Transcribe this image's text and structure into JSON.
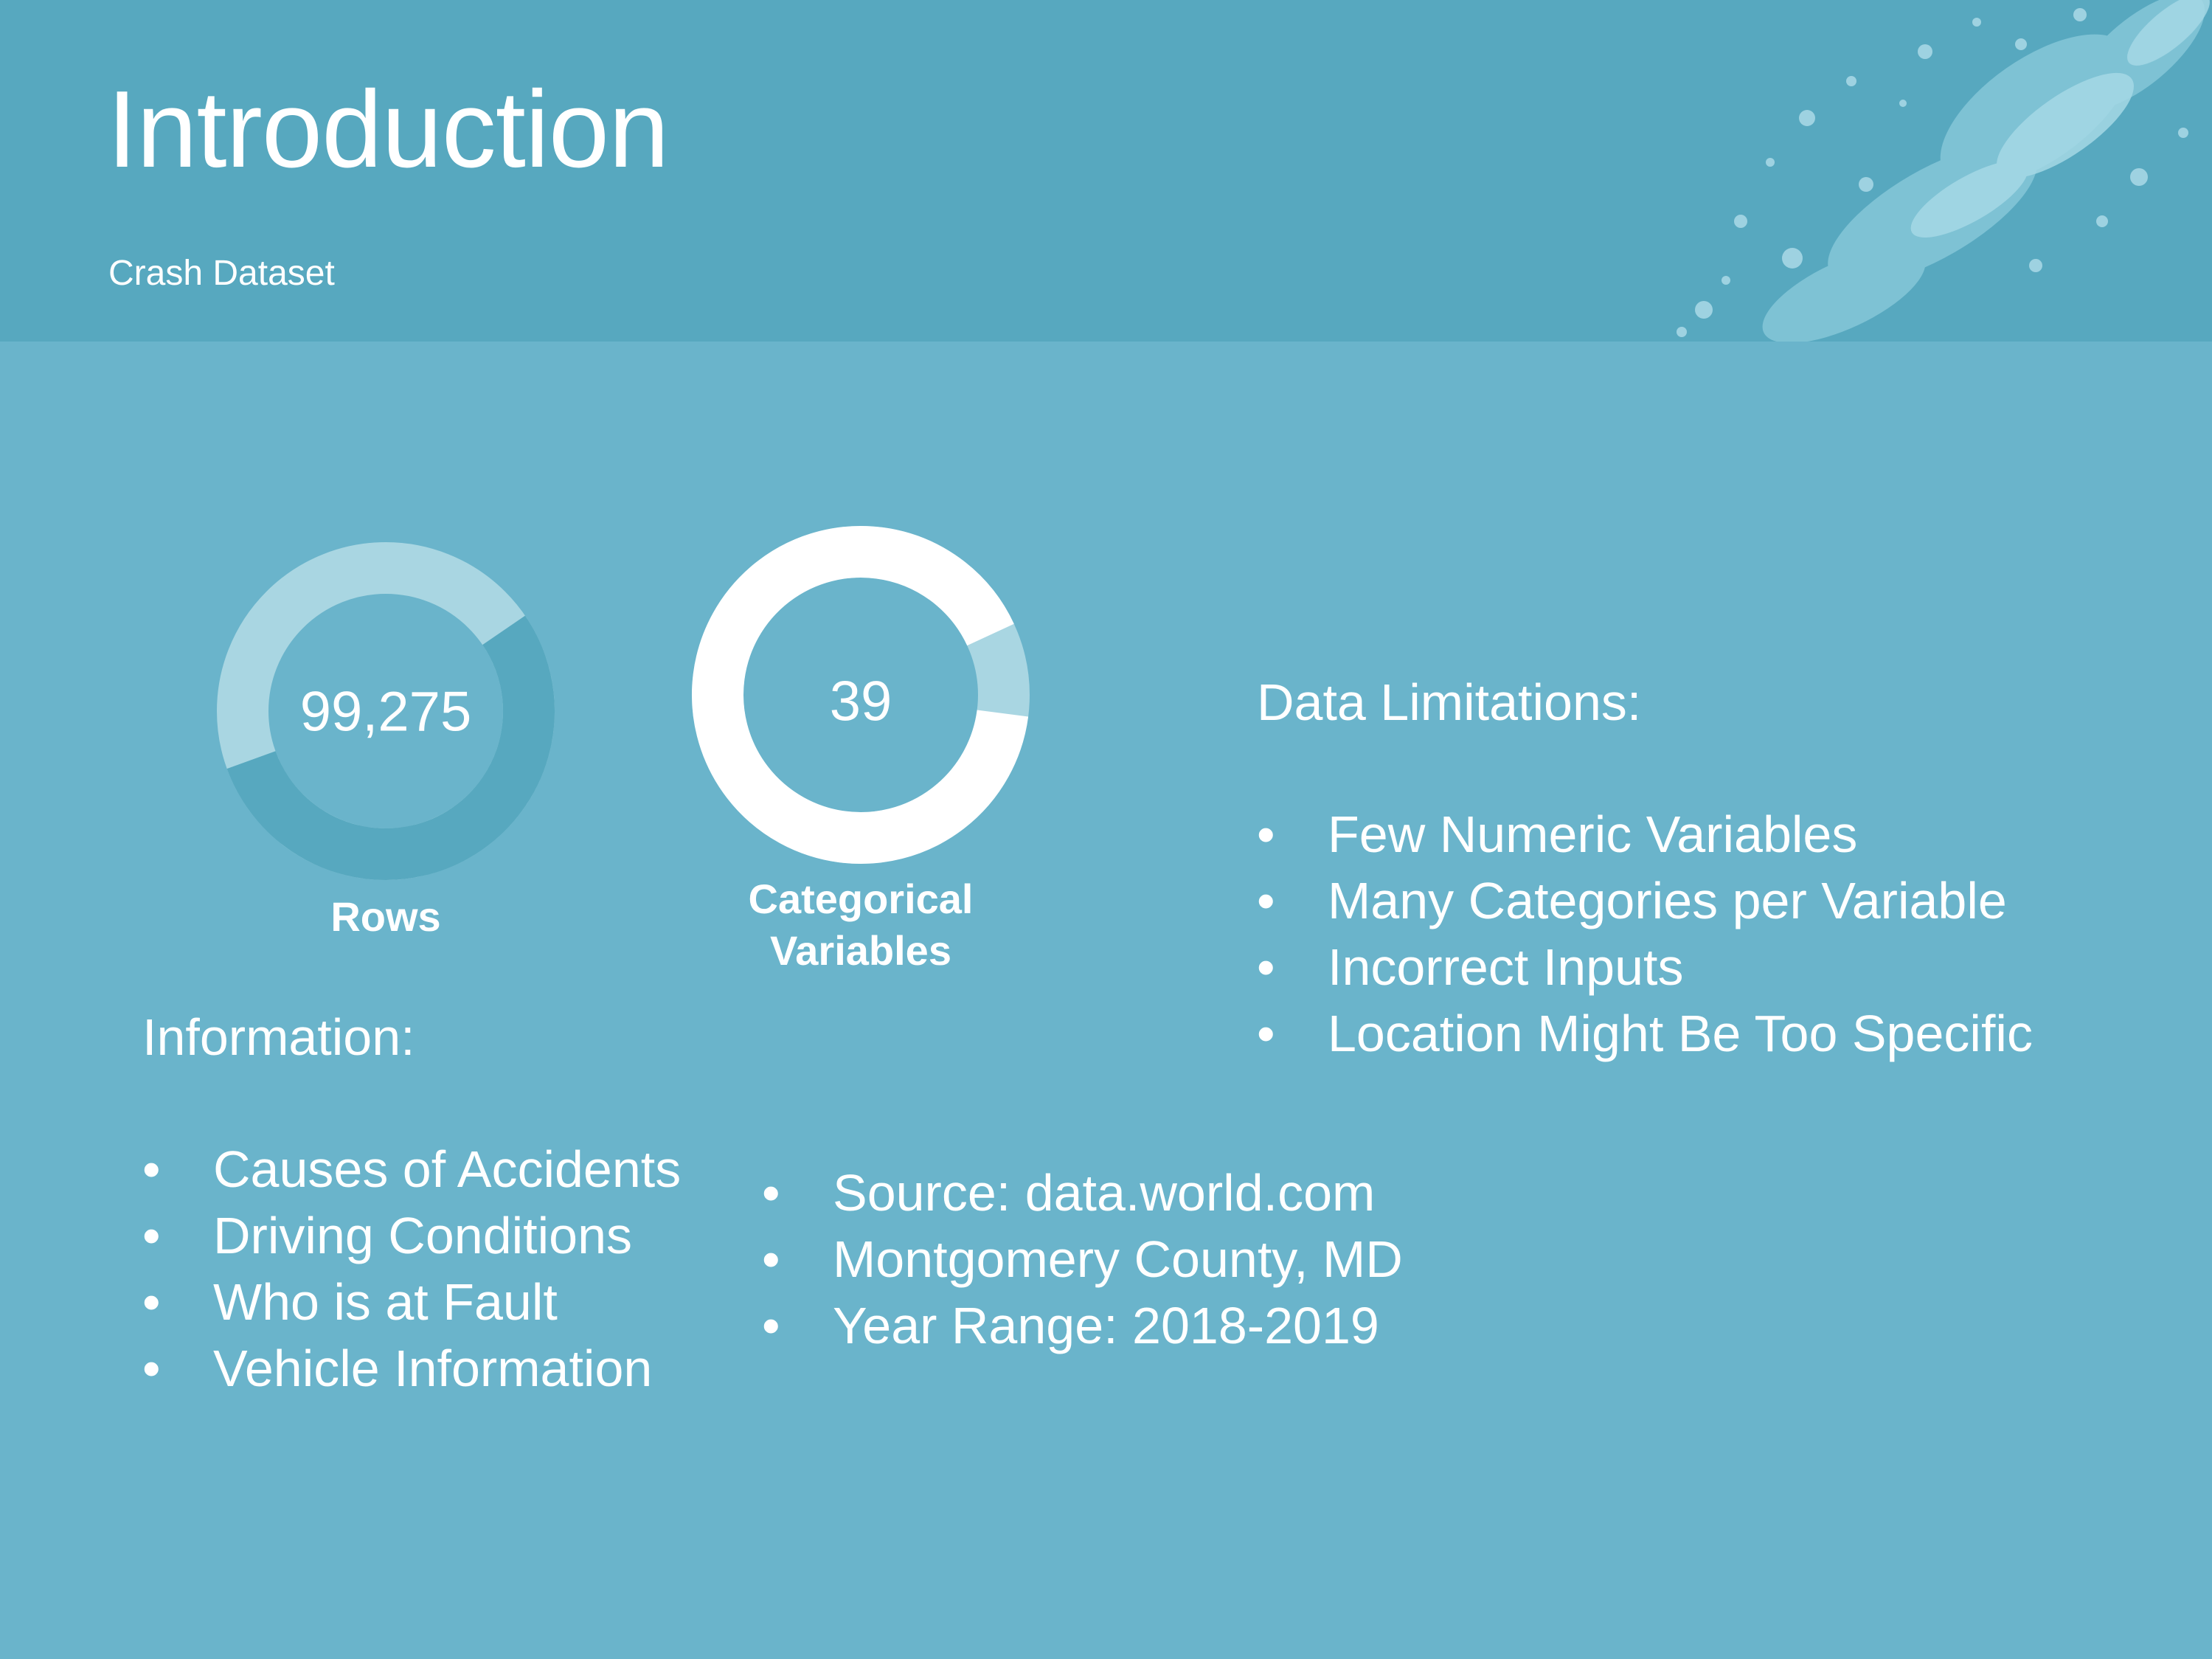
{
  "slide": {
    "title": "Introduction",
    "subtitle": "Crash Dataset"
  },
  "stats": [
    {
      "value": "99,275",
      "label": "Rows",
      "fill_fraction": 0.54
    },
    {
      "value": "39",
      "label_line1": "Categorical",
      "label_line2": "Variables",
      "fill_fraction": 0.91
    }
  ],
  "information": {
    "heading": "Information:",
    "items": [
      "Causes of Accidents",
      "Driving Conditions",
      "Who is at Fault",
      "Vehicle Information"
    ]
  },
  "source_info": {
    "items": [
      "Source: data.world.com",
      "Montgomery County, MD",
      "Year Range: 2018-2019"
    ]
  },
  "limitations": {
    "heading": "Data Limitations:",
    "items": [
      "Few Numeric Variables",
      "Many Categories per Variable",
      "Incorrect Inputs",
      "Location Might Be Too Specific"
    ]
  },
  "colors": {
    "background": "#6ab4cb",
    "header": "#57a8bf",
    "donut_dark": "#57a8bf",
    "donut_light": "#a9d6e2",
    "donut_white": "#ffffff",
    "text": "#ffffff"
  }
}
